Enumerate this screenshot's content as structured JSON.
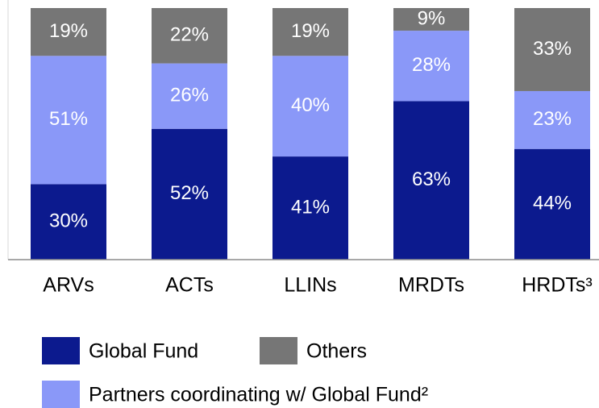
{
  "chart_data": {
    "type": "stacked_bar",
    "categories": [
      "ARVs",
      "ACTs",
      "LLINs",
      "MRDTs",
      "HRDTs³"
    ],
    "series": [
      {
        "name": "Global Fund",
        "color": "#0c1a8e",
        "values": [
          30,
          52,
          41,
          63,
          44
        ],
        "value_labels": [
          "30%",
          "52%",
          "41%",
          "63%",
          "44%"
        ]
      },
      {
        "name": "Partners coordinating w/ Global Fund²",
        "color": "#8a98f8",
        "values": [
          51,
          26,
          40,
          28,
          23
        ],
        "value_labels": [
          "51%",
          "26%",
          "40%",
          "28%",
          "23%"
        ]
      },
      {
        "name": "Others",
        "color": "#767676",
        "values": [
          19,
          22,
          19,
          9,
          33
        ],
        "value_labels": [
          "19%",
          "22%",
          "19%",
          "9%",
          "33%"
        ]
      }
    ]
  }
}
